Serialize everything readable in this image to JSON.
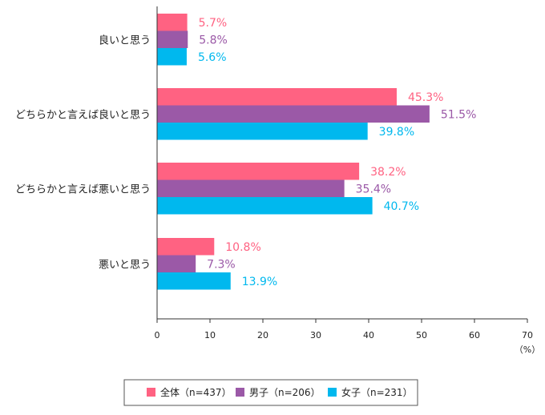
{
  "chart_data": {
    "type": "bar",
    "orientation": "horizontal",
    "categories": [
      "良いと思う",
      "どちらかと言えば良いと思う",
      "どちらかと言えば悪いと思う",
      "悪いと思う"
    ],
    "series": [
      {
        "name": "全体（n=437）",
        "color": "#ff6282",
        "values": [
          5.7,
          45.3,
          38.2,
          10.8
        ],
        "labels": [
          "5.7%",
          "45.3%",
          "38.2%",
          "10.8%"
        ]
      },
      {
        "name": "男子（n=206）",
        "color": "#9b59a7",
        "values": [
          5.8,
          51.5,
          35.4,
          7.3
        ],
        "labels": [
          "5.8%",
          "51.5%",
          "35.4%",
          "7.3%"
        ]
      },
      {
        "name": "女子（n=231）",
        "color": "#00b8ee",
        "values": [
          5.6,
          39.8,
          40.7,
          13.9
        ],
        "labels": [
          "5.6%",
          "39.8%",
          "40.7%",
          "13.9%"
        ]
      }
    ],
    "xlim": [
      0,
      70
    ],
    "xticks": [
      "0",
      "10",
      "20",
      "30",
      "40",
      "50",
      "60",
      "70"
    ],
    "unit": "（%）",
    "grid": false,
    "legend_position": "bottom"
  }
}
